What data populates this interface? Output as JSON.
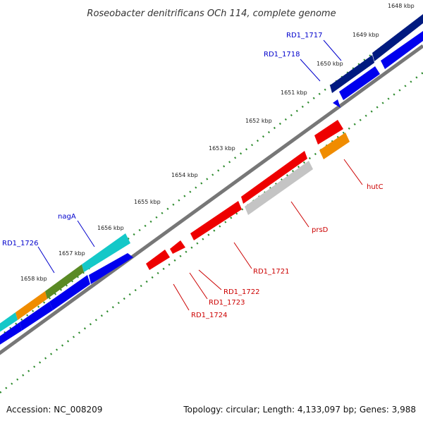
{
  "title": "Roseobacter denitrificans OCh 114, complete genome",
  "colors": {
    "backbone": "#777777",
    "tick": "#2e8b2e",
    "label_forward": "#0000cc",
    "label_reverse": "#cc0000",
    "navy": "#001a80",
    "blue": "#0000ee",
    "red": "#ee0000",
    "grey": "#c4c4c4",
    "orange": "#f08c00",
    "cyan": "#14c8c8",
    "olive": "#5a8a24"
  },
  "scale_labels": [
    "1648 kbp",
    "1649 kbp",
    "1650 kbp",
    "1651 kbp",
    "1652 kbp",
    "1653 kbp",
    "1654 kbp",
    "1655 kbp",
    "1656 kbp",
    "1657 kbp",
    "1658 kbp"
  ],
  "gene_labels": {
    "rd1_1717": "RD1_1717",
    "rd1_1718": "RD1_1718",
    "nagA": "nagA",
    "rd1_1726": "RD1_1726",
    "hutC": "hutC",
    "prsD": "prsD",
    "rd1_1721": "RD1_1721",
    "rd1_1722": "RD1_1722",
    "rd1_1723": "RD1_1723",
    "rd1_1724": "RD1_1724"
  },
  "footer": {
    "accession": "Accession: NC_008209",
    "summary": "Topology: circular; Length: 4,133,097 bp; Genes: 3,988"
  }
}
